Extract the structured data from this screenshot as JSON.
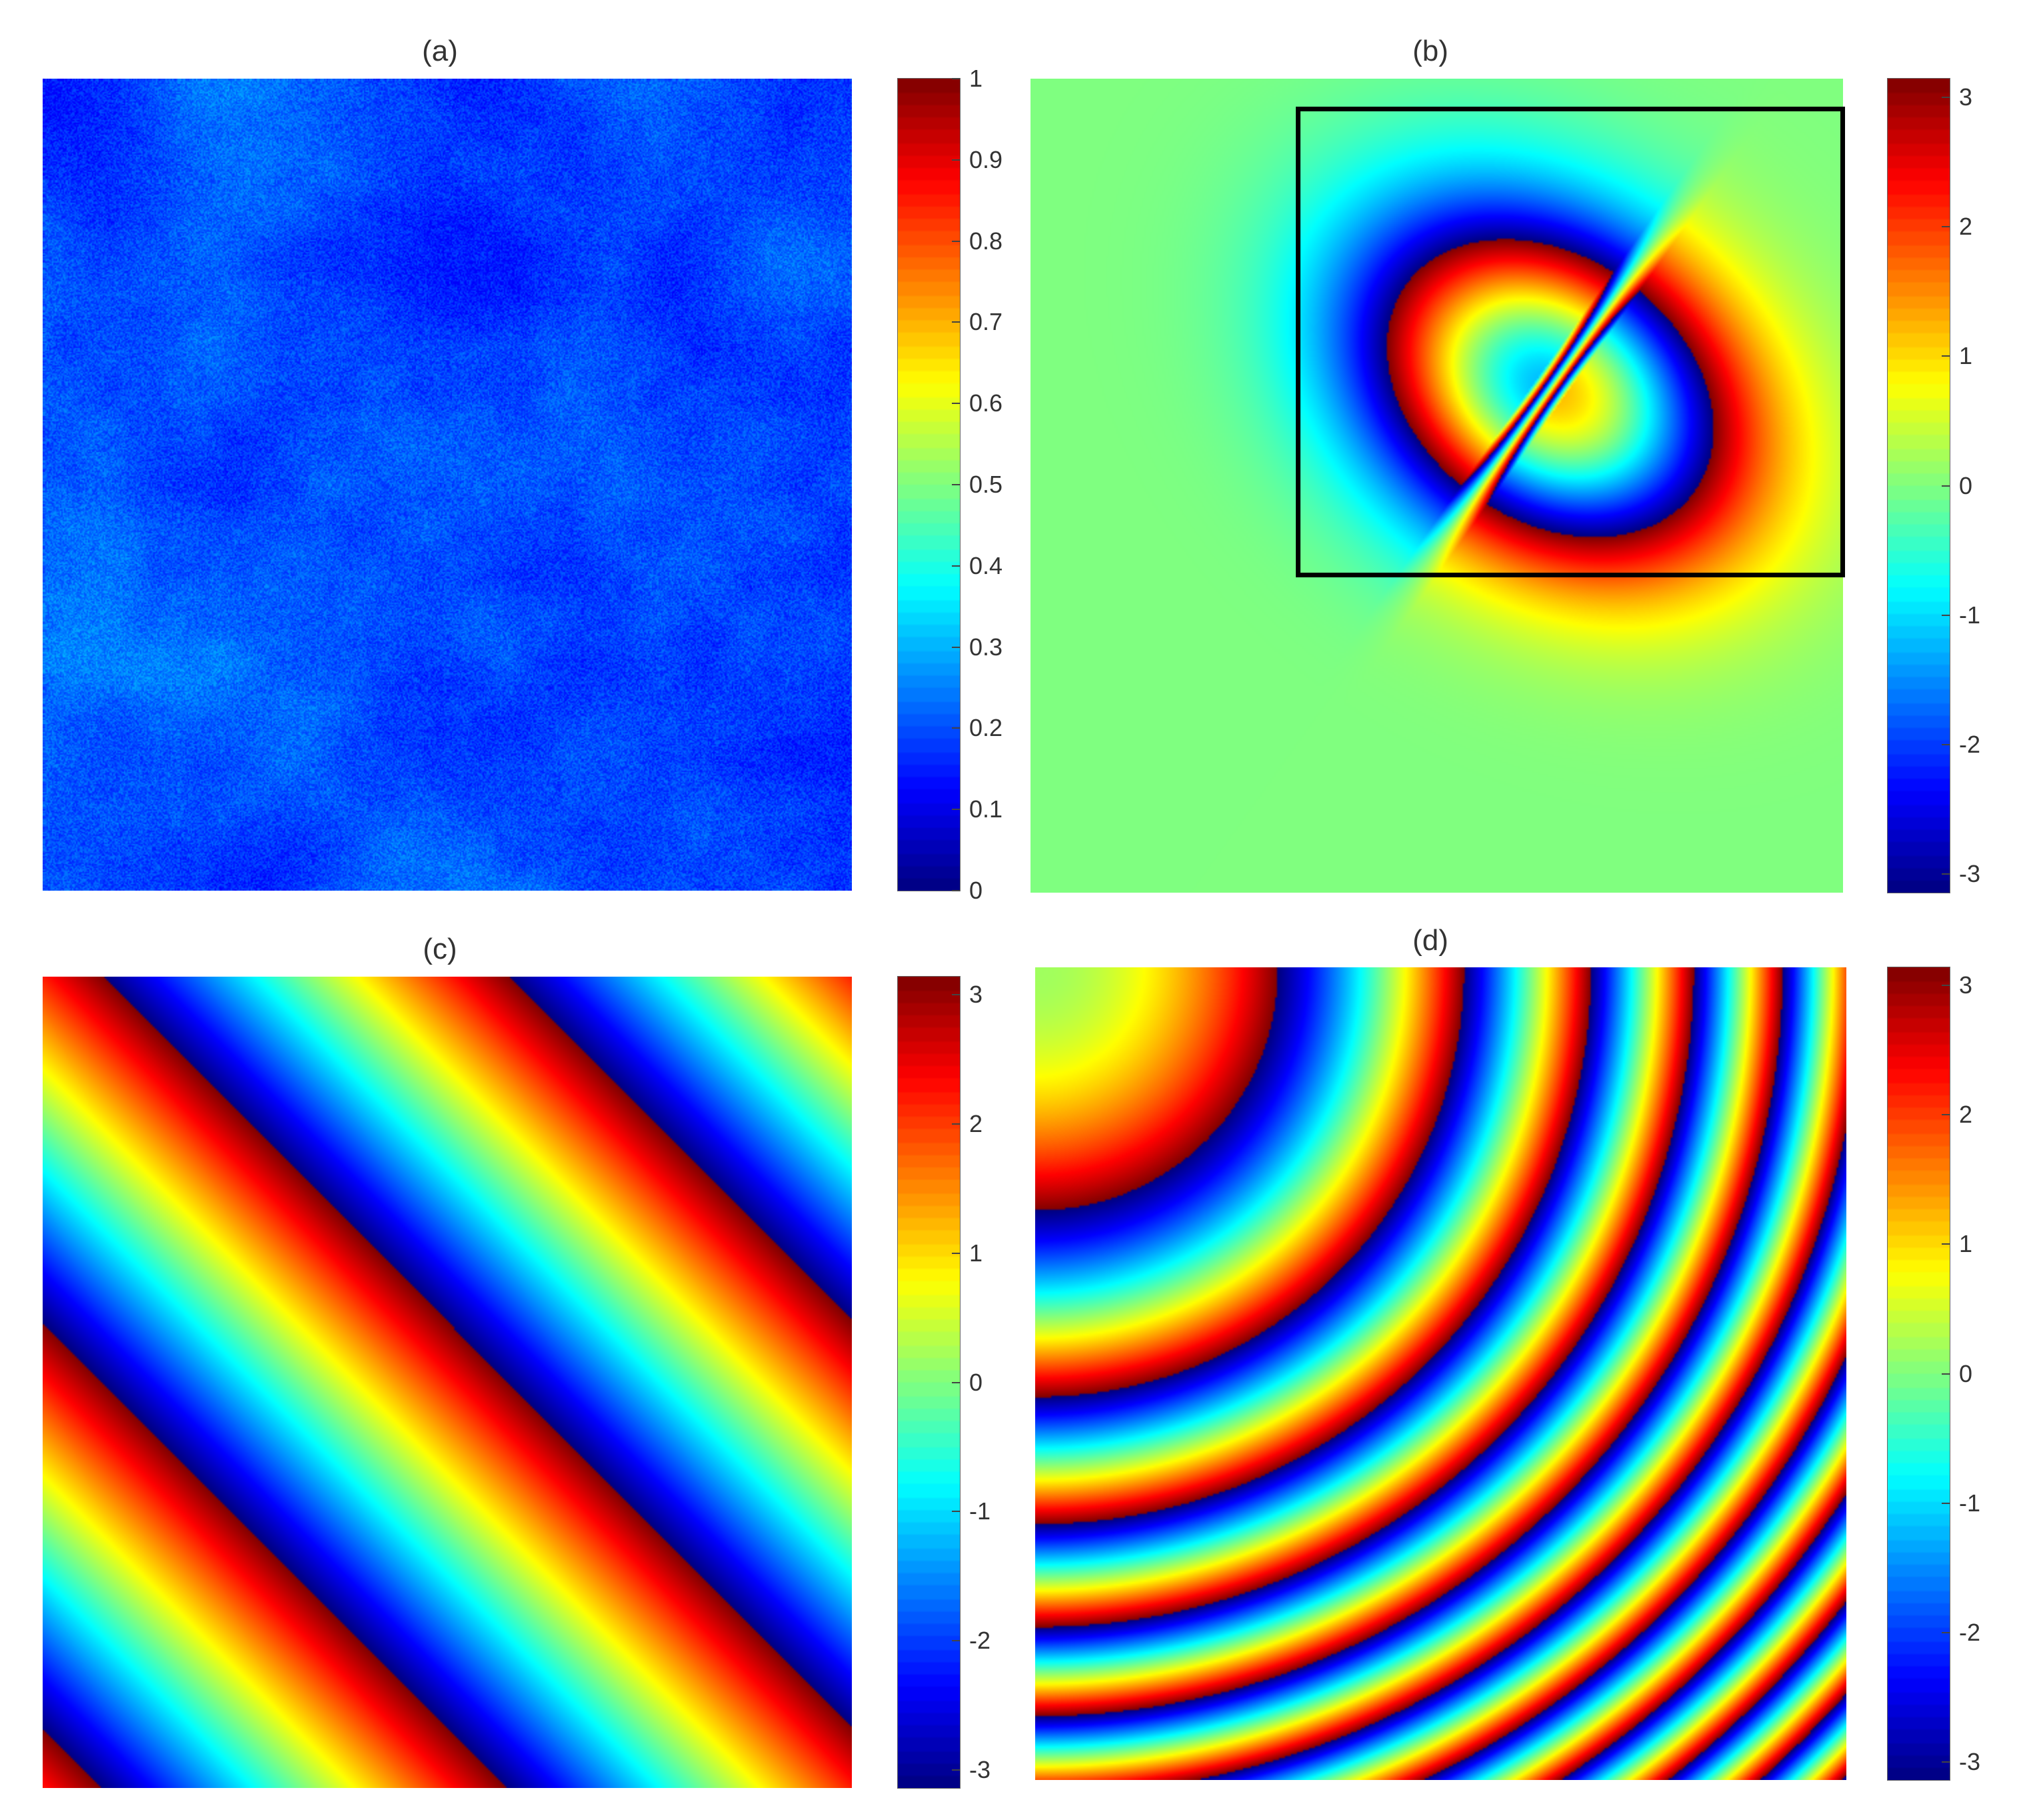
{
  "chart_data": [
    {
      "panel": "a",
      "type": "heatmap",
      "title": "(a)",
      "colormap": "jet",
      "clim": [
        0,
        1
      ],
      "colorbar_ticks": [
        0,
        0.1,
        0.2,
        0.3,
        0.4,
        0.5,
        0.6,
        0.7,
        0.8,
        0.9,
        1
      ],
      "colorbar_tick_labels": [
        "0",
        "0.1",
        "0.2",
        "0.3",
        "0.4",
        "0.5",
        "0.6",
        "0.7",
        "0.8",
        "0.9",
        "1"
      ],
      "field": "random-texture",
      "value_range_shown": [
        0.15,
        0.62
      ]
    },
    {
      "panel": "b",
      "type": "heatmap",
      "title": "(b)",
      "colormap": "jet",
      "clim": [
        -3.1416,
        3.1416
      ],
      "colorbar_ticks": [
        -3,
        -2,
        -1,
        0,
        1,
        2,
        3
      ],
      "colorbar_tick_labels": [
        "-3",
        "-2",
        "-1",
        "0",
        "1",
        "2",
        "3"
      ],
      "field": "dipole-phase",
      "region_box": {
        "x_range": [
          0.33,
          1.0
        ],
        "y_range": [
          0.03,
          0.61
        ],
        "color": "#000000"
      }
    },
    {
      "panel": "c",
      "type": "heatmap",
      "title": "(c)",
      "colormap": "jet",
      "clim": [
        -3.1416,
        3.1416
      ],
      "colorbar_ticks": [
        -3,
        -2,
        -1,
        0,
        1,
        2,
        3
      ],
      "colorbar_tick_labels": [
        "-3",
        "-2",
        "-1",
        "0",
        "1",
        "2",
        "3"
      ],
      "field": "linear-phase-ramp"
    },
    {
      "panel": "d",
      "type": "heatmap",
      "title": "(d)",
      "colormap": "jet",
      "clim": [
        -3.1416,
        3.1416
      ],
      "colorbar_ticks": [
        -3,
        -2,
        -1,
        0,
        1,
        2,
        3
      ],
      "colorbar_tick_labels": [
        "-3",
        "-2",
        "-1",
        "0",
        "1",
        "2",
        "3"
      ],
      "field": "quadratic-phase"
    }
  ]
}
